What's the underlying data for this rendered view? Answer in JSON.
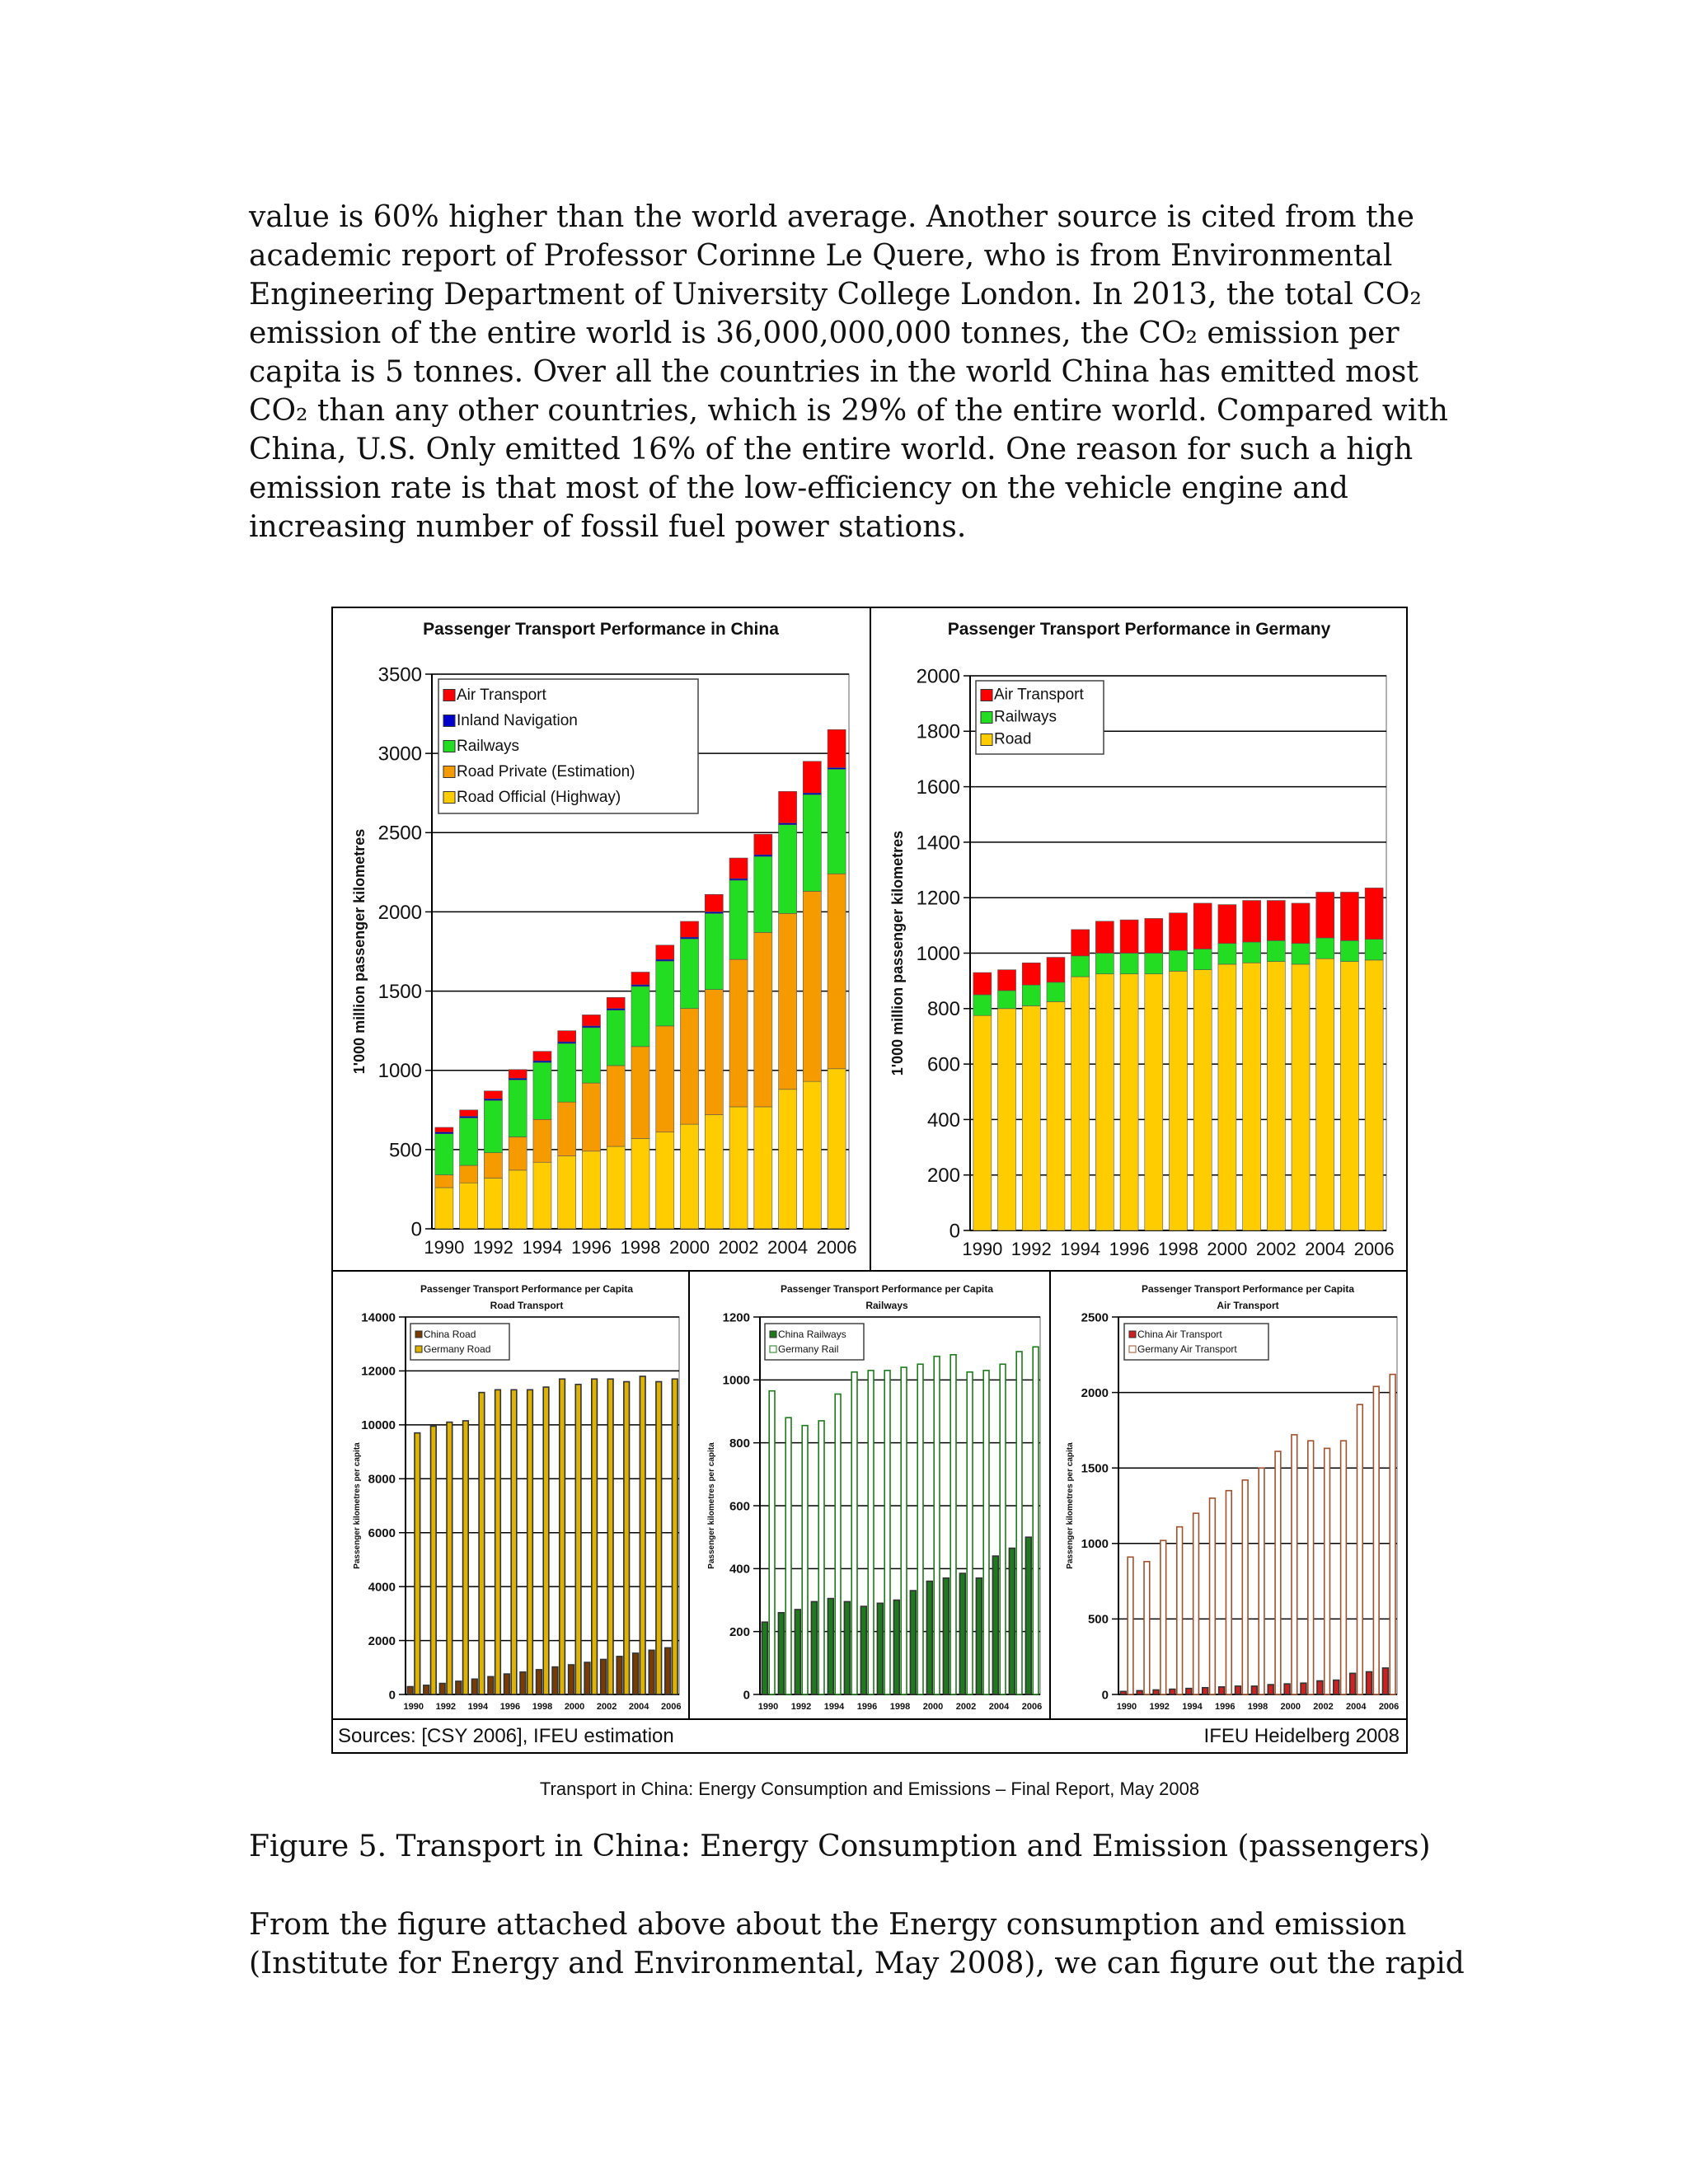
{
  "paragraphs": [
    "value is 60% higher than the world average. Another source is cited from the academic report of Professor Corinne Le Quere, who is from Environmental Engineering Department of University College London. In 2013, the total CO₂ emission of the entire world is 36,000,000,000 tonnes, the CO₂ emission per capita is 5 tonnes. Over all the countries in the world China has emitted most CO₂ than any other countries, which is 29% of the entire world. Compared with China, U.S. Only emitted 16% of the entire world. One reason for such a high emission rate is that most of the low-efficiency on the vehicle engine and increasing number of fossil fuel power stations.",
    "From the figure attached above about the Energy consumption and emission (Institute for Energy and Environmental, May 2008), we can figure out the rapid"
  ],
  "figure": {
    "sources": "Sources: [CSY 2006], IFEU estimation",
    "credit": "IFEU Heidelberg 2008",
    "report_title": "Transport in China: Energy Consumption and Emissions – Final Report, May 2008",
    "caption": "Figure 5. Transport in China: Energy Consumption and Emission (passengers)"
  },
  "colors": {
    "air": "#ff0000",
    "inland": "#0000cc",
    "railways": "#22dd22",
    "road_private": "#f59b00",
    "road_official": "#ffcc00",
    "china_road": "#7a3b00",
    "germany_road": "#ddb200",
    "china_rail": "#1d7a1d",
    "germany_rail": "#ffffff",
    "germany_rail_edge": "#1d7a1d",
    "china_air": "#cc2222",
    "germany_air": "#ffffff",
    "germany_air_edge": "#a0522d"
  },
  "chart_data": [
    {
      "type": "bar",
      "stacked": true,
      "title": "Passenger Transport Performance in China",
      "ylabel": "1'000 million passenger kilometres",
      "ylim": [
        0,
        3500
      ],
      "yticks": [
        0,
        500,
        1000,
        1500,
        2000,
        2500,
        3000,
        3500
      ],
      "x": [
        1990,
        1991,
        1992,
        1993,
        1994,
        1995,
        1996,
        1997,
        1998,
        1999,
        2000,
        2001,
        2002,
        2003,
        2004,
        2005,
        2006
      ],
      "xtick_labels": [
        "1990",
        "1992",
        "1994",
        "1996",
        "1998",
        "2000",
        "2002",
        "2004",
        "2006"
      ],
      "legend_position": "top-left",
      "series": [
        {
          "name": "Road Official (Highway)",
          "color_key": "road_official",
          "values": [
            260,
            290,
            320,
            370,
            420,
            460,
            490,
            520,
            570,
            610,
            660,
            720,
            770,
            770,
            880,
            930,
            1010
          ]
        },
        {
          "name": "Road Private (Estimation)",
          "color_key": "road_private",
          "values": [
            80,
            110,
            160,
            210,
            270,
            340,
            430,
            510,
            580,
            670,
            730,
            790,
            930,
            1100,
            1110,
            1200,
            1230
          ]
        },
        {
          "name": "Railways",
          "color_key": "railways",
          "values": [
            260,
            300,
            330,
            360,
            360,
            370,
            350,
            350,
            380,
            410,
            440,
            480,
            500,
            480,
            560,
            610,
            660
          ]
        },
        {
          "name": "Inland Navigation",
          "color_key": "inland",
          "values": [
            10,
            10,
            10,
            10,
            10,
            10,
            10,
            10,
            10,
            10,
            10,
            10,
            10,
            10,
            10,
            10,
            10
          ]
        },
        {
          "name": "Air Transport",
          "color_key": "air",
          "values": [
            30,
            40,
            50,
            55,
            60,
            70,
            70,
            70,
            80,
            90,
            100,
            110,
            130,
            130,
            200,
            200,
            240
          ]
        }
      ]
    },
    {
      "type": "bar",
      "stacked": true,
      "title": "Passenger Transport Performance in Germany",
      "ylabel": "1'000 million passenger kilometres",
      "ylim": [
        0,
        2000
      ],
      "yticks": [
        0,
        200,
        400,
        600,
        800,
        1000,
        1200,
        1400,
        1600,
        1800,
        2000
      ],
      "x": [
        1990,
        1991,
        1992,
        1993,
        1994,
        1995,
        1996,
        1997,
        1998,
        1999,
        2000,
        2001,
        2002,
        2003,
        2004,
        2005,
        2006
      ],
      "xtick_labels": [
        "1990",
        "1992",
        "1994",
        "1996",
        "1998",
        "2000",
        "2002",
        "2004",
        "2006"
      ],
      "legend_position": "top-left",
      "series": [
        {
          "name": "Road",
          "color_key": "road_official",
          "values": [
            775,
            800,
            810,
            825,
            915,
            925,
            925,
            925,
            935,
            940,
            960,
            965,
            970,
            960,
            980,
            970,
            975
          ]
        },
        {
          "name": "Railways",
          "color_key": "railways",
          "values": [
            75,
            65,
            75,
            70,
            75,
            75,
            75,
            75,
            75,
            75,
            75,
            75,
            75,
            75,
            75,
            75,
            75
          ]
        },
        {
          "name": "Air Transport",
          "color_key": "air",
          "values": [
            80,
            75,
            80,
            90,
            95,
            115,
            120,
            125,
            135,
            165,
            140,
            150,
            145,
            145,
            165,
            175,
            185
          ]
        }
      ]
    },
    {
      "type": "bar",
      "title": "Passenger Transport Performance per Capita",
      "subtitle": "Road Transport",
      "ylabel": "Passenger kilometres per capita",
      "ylim": [
        0,
        14000
      ],
      "yticks": [
        0,
        2000,
        4000,
        6000,
        8000,
        10000,
        12000,
        14000
      ],
      "x": [
        1990,
        1991,
        1992,
        1993,
        1994,
        1995,
        1996,
        1997,
        1998,
        1999,
        2000,
        2001,
        2002,
        2003,
        2004,
        2005,
        2006
      ],
      "xtick_labels": [
        "1990",
        "1992",
        "1994",
        "1996",
        "1998",
        "2000",
        "2002",
        "2004",
        "2006"
      ],
      "legend_position": "top-left",
      "series": [
        {
          "name": "China Road",
          "color_key": "china_road",
          "values": [
            290,
            340,
            410,
            490,
            570,
            660,
            760,
            830,
            920,
            1020,
            1100,
            1190,
            1300,
            1410,
            1530,
            1640,
            1730
          ]
        },
        {
          "name": "Germany Road",
          "color_key": "germany_road",
          "values": [
            9700,
            9950,
            10100,
            10150,
            11200,
            11300,
            11300,
            11300,
            11400,
            11700,
            11500,
            11700,
            11700,
            11600,
            11800,
            11600,
            11700
          ]
        }
      ]
    },
    {
      "type": "bar",
      "title": "Passenger Transport Performance per Capita",
      "subtitle": "Railways",
      "ylabel": "Passenger kilometres per capita",
      "ylim": [
        0,
        1200
      ],
      "yticks": [
        0,
        200,
        400,
        600,
        800,
        1000,
        1200
      ],
      "x": [
        1990,
        1991,
        1992,
        1993,
        1994,
        1995,
        1996,
        1997,
        1998,
        1999,
        2000,
        2001,
        2002,
        2003,
        2004,
        2005,
        2006
      ],
      "xtick_labels": [
        "1990",
        "1992",
        "1994",
        "1996",
        "1998",
        "2000",
        "2002",
        "2004",
        "2006"
      ],
      "legend_position": "top-left",
      "series": [
        {
          "name": "China Railways",
          "color_key": "china_rail",
          "values": [
            230,
            260,
            270,
            295,
            305,
            295,
            280,
            290,
            300,
            330,
            360,
            370,
            385,
            370,
            440,
            465,
            500
          ]
        },
        {
          "name": "Germany Rail",
          "color_key": "germany_rail",
          "values": [
            965,
            880,
            855,
            870,
            955,
            1025,
            1030,
            1030,
            1040,
            1050,
            1075,
            1080,
            1025,
            1030,
            1050,
            1090,
            1105
          ]
        }
      ]
    },
    {
      "type": "bar",
      "title": "Passenger Transport Performance per Capita",
      "subtitle": "Air Transport",
      "ylabel": "Passenger kilometres per capita",
      "ylim": [
        0,
        2500
      ],
      "yticks": [
        0,
        500,
        1000,
        1500,
        2000,
        2500
      ],
      "x": [
        1990,
        1991,
        1992,
        1993,
        1994,
        1995,
        1996,
        1997,
        1998,
        1999,
        2000,
        2001,
        2002,
        2003,
        2004,
        2005,
        2006
      ],
      "xtick_labels": [
        "1990",
        "1992",
        "1994",
        "1996",
        "1998",
        "2000",
        "2002",
        "2004",
        "2006"
      ],
      "legend_position": "top-left",
      "series": [
        {
          "name": "China Air Transport",
          "color_key": "china_air",
          "values": [
            20,
            25,
            30,
            35,
            40,
            45,
            50,
            55,
            55,
            65,
            70,
            75,
            90,
            95,
            140,
            150,
            175
          ]
        },
        {
          "name": "Germany Air Transport",
          "color_key": "germany_air",
          "values": [
            910,
            880,
            1020,
            1110,
            1200,
            1300,
            1350,
            1420,
            1500,
            1610,
            1720,
            1680,
            1630,
            1680,
            1920,
            2040,
            2120
          ]
        }
      ]
    }
  ]
}
